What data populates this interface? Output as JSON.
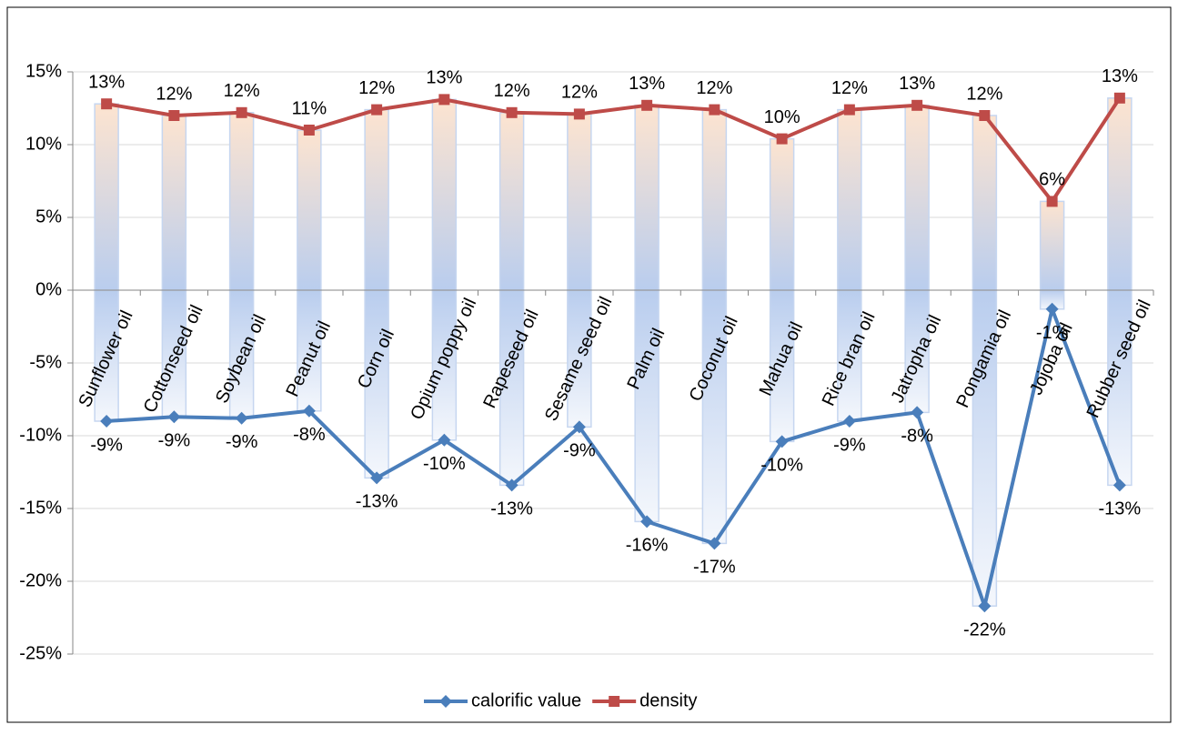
{
  "chart_data": {
    "type": "line",
    "categories": [
      "Sunflower oil",
      "Cottonseed oil",
      "Soybean oil",
      "Peanut oil",
      "Corn oil",
      "Opium poppy oil",
      "Rapeseed oil",
      "Sesame seed oil",
      "Palm oil",
      "Coconut oil",
      "Mahua oil",
      "Rice bran oil",
      "Jatropha oil",
      "Pongamia oil",
      "Jojoba oil",
      "Rubber seed oil"
    ],
    "series": [
      {
        "name": "calorific value",
        "color": "#4a7ebb",
        "marker": "diamond",
        "values": [
          -9.0,
          -8.7,
          -8.8,
          -8.3,
          -12.9,
          -10.3,
          -13.4,
          -9.4,
          -15.9,
          -17.4,
          -10.4,
          -9.0,
          -8.4,
          -21.7,
          -1.3,
          -13.4
        ],
        "value_labels": [
          "-9%",
          "-9%",
          "-9%",
          "-8%",
          "-13%",
          "-10%",
          "-13%",
          "-9%",
          "-16%",
          "-17%",
          "-10%",
          "-9%",
          "-8%",
          "-22%",
          "-1%",
          "-13%"
        ]
      },
      {
        "name": "density",
        "color": "#be4b48",
        "marker": "square",
        "values": [
          12.8,
          12.0,
          12.2,
          11.0,
          12.4,
          13.1,
          12.2,
          12.1,
          12.7,
          12.4,
          10.4,
          12.4,
          12.7,
          12.0,
          6.1,
          13.2
        ],
        "value_labels": [
          "13%",
          "12%",
          "12%",
          "11%",
          "12%",
          "13%",
          "12%",
          "12%",
          "13%",
          "12%",
          "10%",
          "12%",
          "13%",
          "12%",
          "6%",
          "13%"
        ]
      }
    ],
    "ylim": [
      -25,
      15
    ],
    "yticks": [
      {
        "value": -25,
        "label": "-25%"
      },
      {
        "value": -20,
        "label": "-20%"
      },
      {
        "value": -15,
        "label": "-15%"
      },
      {
        "value": -10,
        "label": "-10%"
      },
      {
        "value": -5,
        "label": "-5%"
      },
      {
        "value": 0,
        "label": "0%"
      },
      {
        "value": 5,
        "label": "5%"
      },
      {
        "value": 10,
        "label": "10%"
      },
      {
        "value": 15,
        "label": "15%"
      }
    ],
    "grid": true,
    "legend": "bottom"
  }
}
